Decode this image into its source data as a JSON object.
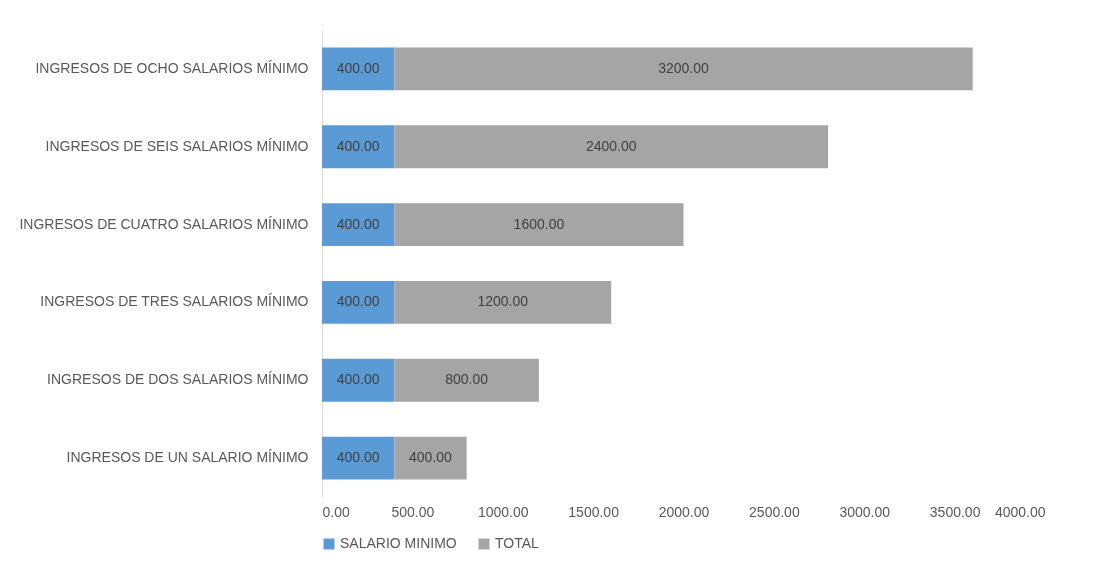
{
  "chart_data": {
    "type": "bar",
    "orientation": "horizontal",
    "stacked": true,
    "categories": [
      "INGRESOS DE OCHO SALARIOS MÍNIMO",
      "INGRESOS DE SEIS SALARIOS MÍNIMO",
      "INGRESOS DE CUATRO SALARIOS MÍNIMO",
      "INGRESOS DE TRES SALARIOS MÍNIMO",
      "INGRESOS DE DOS SALARIOS MÍNIMO",
      "INGRESOS DE UN SALARIO MÍNIMO"
    ],
    "series": [
      {
        "name": "SALARIO MINIMO",
        "color": "#5b9bd5",
        "values": [
          400,
          400,
          400,
          400,
          400,
          400
        ],
        "value_labels": [
          "400.00",
          "400.00",
          "400.00",
          "400.00",
          "400.00",
          "400.00"
        ]
      },
      {
        "name": "TOTAL",
        "color": "#a5a5a5",
        "values": [
          3200,
          2400,
          1600,
          1200,
          800,
          400
        ],
        "value_labels": [
          "3200.00",
          "2400.00",
          "1600.00",
          "1200.00",
          "800.00",
          "400.00"
        ]
      }
    ],
    "xlim": [
      0,
      4000
    ],
    "xticks": [
      {
        "value": 0,
        "label": "0.00"
      },
      {
        "value": 500,
        "label": "500.00"
      },
      {
        "value": 1000,
        "label": "1000.00"
      },
      {
        "value": 1500,
        "label": "1500.00"
      },
      {
        "value": 2000,
        "label": "2000.00"
      },
      {
        "value": 2500,
        "label": "2500.00"
      },
      {
        "value": 3000,
        "label": "3000.00"
      },
      {
        "value": 3500,
        "label": "3500.00"
      },
      {
        "value": 4000,
        "label": "4000.00"
      }
    ],
    "grid": false,
    "legend": "bottom"
  }
}
